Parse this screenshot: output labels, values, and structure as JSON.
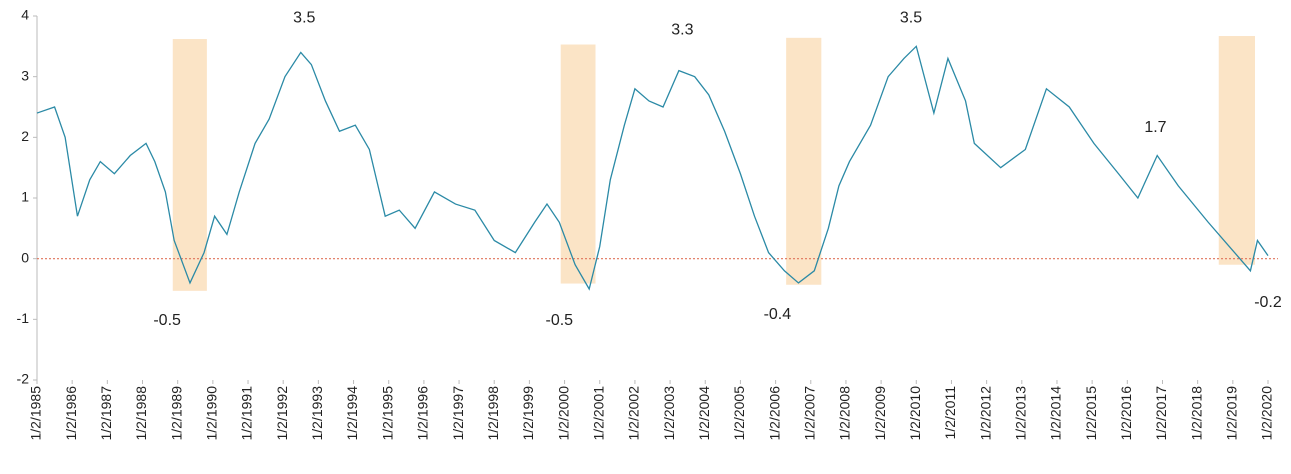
{
  "chart_data": {
    "type": "line",
    "series": [
      {
        "color": "#2b8aa6",
        "x": [
          1985.0,
          1985.5,
          1985.8,
          1986.15,
          1986.5,
          1986.8,
          1987.2,
          1987.65,
          1988.1,
          1988.35,
          1988.65,
          1988.9,
          1989.35,
          1989.75,
          1990.05,
          1990.4,
          1990.75,
          1991.2,
          1991.6,
          1992.05,
          1992.5,
          1992.8,
          1993.2,
          1993.6,
          1994.05,
          1994.45,
          1994.9,
          1995.3,
          1995.75,
          1996.3,
          1996.9,
          1997.45,
          1998.0,
          1998.6,
          1999.15,
          1999.5,
          1999.85,
          2000.3,
          2000.7,
          2001.0,
          2001.3,
          2001.7,
          2002.0,
          2002.4,
          2002.8,
          2003.25,
          2003.7,
          2004.1,
          2004.55,
          2005.0,
          2005.4,
          2005.8,
          2006.25,
          2006.65,
          2007.1,
          2007.5,
          2007.8,
          2008.1,
          2008.7,
          2009.2,
          2009.65,
          2010.0,
          2010.5,
          2010.9,
          2011.4,
          2011.65,
          2012.4,
          2013.1,
          2013.7,
          2014.35,
          2015.05,
          2015.75,
          2016.3,
          2016.85,
          2017.45,
          2018.3,
          2018.9,
          2019.5,
          2019.7,
          2020.0
        ],
        "values": [
          2.4,
          2.5,
          2.0,
          0.7,
          1.3,
          1.6,
          1.4,
          1.7,
          1.9,
          1.6,
          1.1,
          0.3,
          -0.4,
          0.1,
          0.7,
          0.4,
          1.1,
          1.9,
          2.3,
          3.0,
          3.4,
          3.2,
          2.6,
          2.1,
          2.2,
          1.8,
          0.7,
          0.8,
          0.5,
          1.1,
          0.9,
          0.8,
          0.3,
          0.1,
          0.6,
          0.9,
          0.6,
          -0.1,
          -0.5,
          0.2,
          1.3,
          2.2,
          2.8,
          2.6,
          2.5,
          3.1,
          3.0,
          2.7,
          2.1,
          1.4,
          0.7,
          0.1,
          -0.2,
          -0.4,
          -0.2,
          0.5,
          1.2,
          1.6,
          2.2,
          3.0,
          3.3,
          3.5,
          2.4,
          3.3,
          2.6,
          1.9,
          1.5,
          1.8,
          2.8,
          2.5,
          1.9,
          1.4,
          1.0,
          1.7,
          1.2,
          0.6,
          0.2,
          -0.2,
          0.3,
          0.05
        ]
      }
    ],
    "shaded_regions": [
      {
        "x": [
          1988.86,
          1989.83
        ],
        "y": [
          -0.53,
          3.62
        ]
      },
      {
        "x": [
          1999.89,
          2000.88
        ],
        "y": [
          -0.41,
          3.53
        ]
      },
      {
        "x": [
          2006.3,
          2007.3
        ],
        "y": [
          -0.43,
          3.64
        ]
      },
      {
        "x": [
          2018.6,
          2019.63
        ],
        "y": [
          -0.1,
          3.67
        ]
      }
    ],
    "annotations": [
      {
        "label": "-0.5",
        "x": 1988.7,
        "y": -0.5
      },
      {
        "label": "3.5",
        "x": 1992.6,
        "y": 3.5
      },
      {
        "label": "-0.5",
        "x": 1999.85,
        "y": -0.5
      },
      {
        "label": "3.3",
        "x": 2003.35,
        "y": 3.3
      },
      {
        "label": "-0.4",
        "x": 2006.05,
        "y": -0.4
      },
      {
        "label": "3.5",
        "x": 2009.85,
        "y": 3.5
      },
      {
        "label": "1.7",
        "x": 2016.8,
        "y": 1.7
      },
      {
        "label": "-0.2",
        "x": 2020.0,
        "y": -0.2
      }
    ],
    "reference_line": {
      "y": 0,
      "color": "#e0735a"
    },
    "shade_color": "#fbe4c6",
    "xlim": [
      1985,
      2020
    ],
    "ylim": [
      -2,
      4
    ],
    "yticks": [
      -2,
      -1,
      0,
      1,
      2,
      3,
      4
    ],
    "xticks": [
      {
        "value": 1985,
        "label": "1/2/1985"
      },
      {
        "value": 1986,
        "label": "1/2/1986"
      },
      {
        "value": 1987,
        "label": "1/2/1987"
      },
      {
        "value": 1988,
        "label": "1/2/1988"
      },
      {
        "value": 1989,
        "label": "1/2/1989"
      },
      {
        "value": 1990,
        "label": "1/2/1990"
      },
      {
        "value": 1991,
        "label": "1/2/1991"
      },
      {
        "value": 1992,
        "label": "1/2/1992"
      },
      {
        "value": 1993,
        "label": "1/2/1993"
      },
      {
        "value": 1994,
        "label": "1/2/1994"
      },
      {
        "value": 1995,
        "label": "1/2/1995"
      },
      {
        "value": 1996,
        "label": "1/2/1996"
      },
      {
        "value": 1997,
        "label": "1/2/1997"
      },
      {
        "value": 1998,
        "label": "1/2/1998"
      },
      {
        "value": 1999,
        "label": "1/2/1999"
      },
      {
        "value": 2000,
        "label": "1/2/2000"
      },
      {
        "value": 2001,
        "label": "1/2/2001"
      },
      {
        "value": 2002,
        "label": "1/2/2002"
      },
      {
        "value": 2003,
        "label": "1/2/2003"
      },
      {
        "value": 2004,
        "label": "1/2/2004"
      },
      {
        "value": 2005,
        "label": "1/2/2005"
      },
      {
        "value": 2006,
        "label": "1/2/2006"
      },
      {
        "value": 2007,
        "label": "1/2/2007"
      },
      {
        "value": 2008,
        "label": "1/2/2008"
      },
      {
        "value": 2009,
        "label": "1/2/2009"
      },
      {
        "value": 2010,
        "label": "1/2/2010"
      },
      {
        "value": 2011,
        "label": "1/2/2011"
      },
      {
        "value": 2012,
        "label": "1/2/2012"
      },
      {
        "value": 2013,
        "label": "1/2/2013"
      },
      {
        "value": 2014,
        "label": "1/2/2014"
      },
      {
        "value": 2015,
        "label": "1/2/2015"
      },
      {
        "value": 2016,
        "label": "1/2/2016"
      },
      {
        "value": 2017,
        "label": "1/2/2017"
      },
      {
        "value": 2018,
        "label": "1/2/2018"
      },
      {
        "value": 2019,
        "label": "1/2/2019"
      },
      {
        "value": 2020,
        "label": "1/2/2020"
      }
    ]
  }
}
